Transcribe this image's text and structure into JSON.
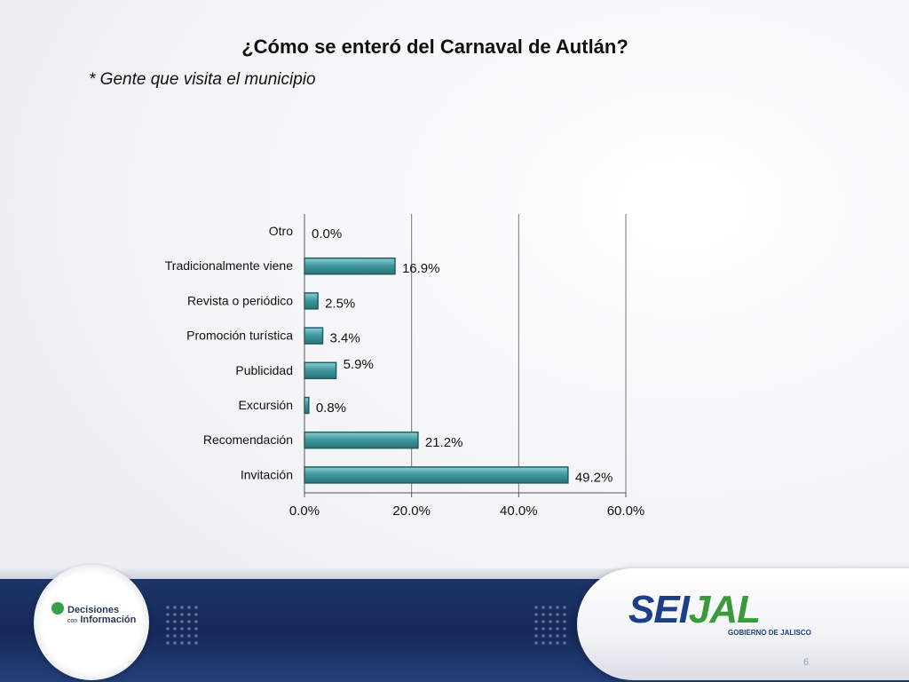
{
  "slide": {
    "title": "¿Cómo se enteró del Carnaval de Autlán?",
    "subtitle": "* Gente que visita el municipio",
    "page_number": "6"
  },
  "logos": {
    "left_text_1": "Decisiones",
    "left_text_small": "con",
    "left_text_2": "Información",
    "right_word_1": "SEI",
    "right_word_2": "JAL",
    "right_sub": "GOBIERNO DE JALISCO"
  },
  "colors": {
    "bar_fill": "#3f9aa0",
    "bar_edge": "#1f5f66",
    "grid": "#777777",
    "footer_blue": "#1c3566"
  },
  "chart_data": {
    "type": "bar",
    "orientation": "horizontal",
    "categories": [
      "Otro",
      "Tradicionalmente viene",
      "Revista o periódico",
      "Promoción turística",
      "Publicidad",
      "Excursión",
      "Recomendación",
      "Invitación"
    ],
    "values": [
      0.0,
      16.9,
      2.5,
      3.4,
      5.9,
      0.8,
      21.2,
      49.2
    ],
    "value_labels": [
      "0.0%",
      "16.9%",
      "2.5%",
      "3.4%",
      "5.9%",
      "0.8%",
      "21.2%",
      "49.2%"
    ],
    "x_ticks": [
      "0.0%",
      "20.0%",
      "40.0%",
      "60.0%"
    ],
    "x_tick_values": [
      0,
      20,
      40,
      60
    ],
    "xlim": [
      0,
      60
    ],
    "grid": true,
    "legend": "none"
  }
}
